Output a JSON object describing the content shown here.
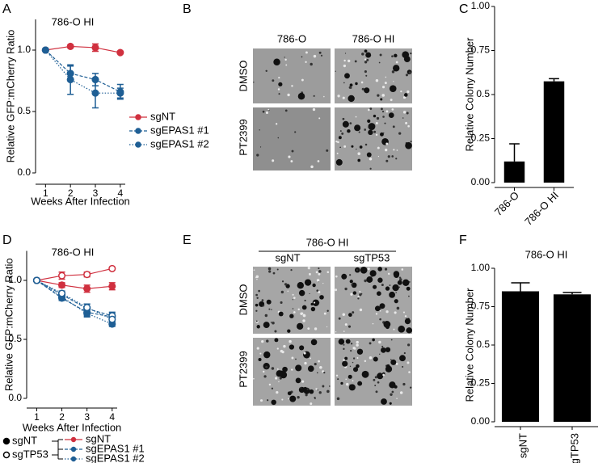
{
  "panel_labels": [
    "A",
    "B",
    "C",
    "D",
    "E",
    "F"
  ],
  "chart_data": [
    {
      "type": "line",
      "title": "786-O HI",
      "xlabel": "Weeks After Infection",
      "ylabel": "Relative GFP:mCherry Ratio",
      "x": [
        1,
        2,
        3,
        4
      ],
      "xlim": [
        0.6,
        4.2
      ],
      "xticks": [
        1,
        2,
        3,
        4
      ],
      "ylim": [
        0,
        1.25
      ],
      "yticks": [
        {
          "value": 0,
          "label": "0.0"
        },
        0.5,
        {
          "value": 1,
          "label": "1.0"
        }
      ],
      "series": [
        {
          "name": "sgNT",
          "color": "#d0303f",
          "dash": "solid",
          "marker": "filled",
          "values": [
            1.0,
            1.03,
            1.02,
            0.98
          ],
          "errors": [
            0,
            0.01,
            0.03,
            0.01
          ]
        },
        {
          "name": "sgEPAS1 #1",
          "color": "#1f5f95",
          "dash": "dashed",
          "marker": "filled",
          "values": [
            1.0,
            0.81,
            0.76,
            0.66
          ],
          "errors": [
            0,
            0.06,
            0.05,
            0.06
          ]
        },
        {
          "name": "sgEPAS1 #2",
          "color": "#1f5f95",
          "dash": "dotted",
          "marker": "filled",
          "values": [
            1.0,
            0.76,
            0.65,
            0.65
          ],
          "errors": [
            0,
            0.12,
            0.12,
            0.04
          ]
        }
      ]
    },
    {
      "type": "bar",
      "ylabel": "Relative Colony Number",
      "categories": [
        "786-O",
        "786-O HI"
      ],
      "values": [
        0.12,
        0.575
      ],
      "errors": [
        0.1,
        0.015
      ],
      "color": "#000000",
      "ylim": [
        0,
        1
      ],
      "yticks": [
        {
          "value": 0,
          "label": "0.00"
        },
        0.25,
        0.5,
        0.75,
        {
          "value": 1,
          "label": "1.00"
        }
      ]
    },
    {
      "type": "line",
      "title": "786-O HI",
      "xlabel": "Weeks After Infection",
      "ylabel": "Relative GFP:mCherry Ratio",
      "x": [
        1,
        2,
        3,
        4
      ],
      "xlim": [
        0.6,
        4.2
      ],
      "xticks": [
        1,
        2,
        3,
        4
      ],
      "ylim": [
        0,
        1.25
      ],
      "yticks": [
        {
          "value": 0,
          "label": "0.0"
        },
        0.5,
        {
          "value": 1,
          "label": "1.0"
        }
      ],
      "series": [
        {
          "color": "#d0303f",
          "dash": "solid",
          "marker": "filled",
          "values": [
            1.0,
            0.96,
            0.93,
            0.95
          ],
          "errors": [
            0,
            0.02,
            0.03,
            0.03
          ]
        },
        {
          "color": "#d0303f",
          "dash": "solid",
          "marker": "open",
          "values": [
            1.0,
            1.04,
            1.05,
            1.1
          ],
          "errors": [
            0,
            0.03,
            0.02,
            0.01
          ]
        },
        {
          "color": "#1f5f95",
          "dash": "dashed",
          "marker": "filled",
          "values": [
            1.0,
            0.85,
            0.73,
            0.69
          ],
          "errors": [
            0,
            0.02,
            0.03,
            0.03
          ]
        },
        {
          "color": "#1f5f95",
          "dash": "dotted",
          "marker": "filled",
          "values": [
            1.0,
            0.86,
            0.72,
            0.63
          ],
          "errors": [
            0,
            0.02,
            0.03,
            0.02
          ]
        },
        {
          "color": "#1f5f95",
          "dash": "dashed",
          "marker": "open",
          "values": [
            1.0,
            0.88,
            0.76,
            0.7
          ],
          "errors": [
            0,
            0.02,
            0.04,
            0.03
          ]
        },
        {
          "color": "#1f5f95",
          "dash": "dotted",
          "marker": "open",
          "values": [
            1.0,
            0.89,
            0.77,
            0.67
          ],
          "errors": [
            0,
            0.02,
            0.03,
            0.02
          ]
        }
      ],
      "legend": {
        "marker_keys": [
          {
            "label": "sgNT",
            "marker": "filled"
          },
          {
            "label": "sgTP53",
            "marker": "open"
          }
        ],
        "line_keys": [
          {
            "label": "sgNT",
            "color": "#d0303f",
            "dash": "solid"
          },
          {
            "label": "sgEPAS1 #1",
            "color": "#1f5f95",
            "dash": "dashed"
          },
          {
            "label": "sgEPAS1 #2",
            "color": "#1f5f95",
            "dash": "dotted"
          }
        ]
      }
    },
    {
      "type": "bar",
      "title": "786-O HI",
      "ylabel": "Relative Colony Number",
      "categories": [
        "sgNT",
        "sgTP53"
      ],
      "values": [
        0.85,
        0.83
      ],
      "errors": [
        0.055,
        0.012
      ],
      "color": "#000000",
      "ylim": [
        0,
        1
      ],
      "yticks": [
        {
          "value": 0,
          "label": "0.00"
        },
        0.25,
        0.5,
        0.75,
        {
          "value": 1,
          "label": "1.00"
        }
      ]
    }
  ],
  "micrographs": [
    {
      "columns": [
        "786-O",
        "786-O HI"
      ],
      "rows": [
        "DMSO",
        "PT2399"
      ]
    },
    {
      "header": "786-O HI",
      "columns": [
        "sgNT",
        "sgTP53"
      ],
      "rows": [
        "DMSO",
        "PT2399"
      ]
    }
  ]
}
